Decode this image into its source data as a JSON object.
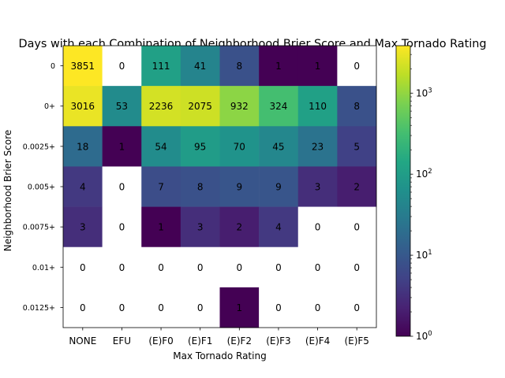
{
  "chart_data": {
    "type": "heatmap",
    "title": "Days with each Combination of Neighborhood Brier Score and Max Tornado Rating",
    "xlabel": "Max Tornado Rating",
    "ylabel": "Neighborhood Brier Score",
    "x_categories": [
      "NONE",
      "EFU",
      "(E)F0",
      "(E)F1",
      "(E)F2",
      "(E)F3",
      "(E)F4",
      "(E)F5"
    ],
    "y_categories": [
      "0",
      "0+",
      "0.0025+",
      "0.005+",
      "0.0075+",
      "0.01+",
      "0.0125+"
    ],
    "values": [
      [
        3851,
        0,
        111,
        41,
        8,
        1,
        1,
        0
      ],
      [
        3016,
        53,
        2236,
        2075,
        932,
        324,
        110,
        8
      ],
      [
        18,
        1,
        54,
        95,
        70,
        45,
        23,
        5
      ],
      [
        4,
        0,
        7,
        8,
        9,
        9,
        3,
        2
      ],
      [
        3,
        0,
        1,
        3,
        2,
        4,
        0,
        0
      ],
      [
        0,
        0,
        0,
        0,
        0,
        0,
        0,
        0
      ],
      [
        0,
        0,
        0,
        0,
        1,
        0,
        0,
        0
      ]
    ],
    "color_scale": "log",
    "colormap": "viridis",
    "zero_color": "#ffffff",
    "colorbar": {
      "range": [
        1,
        3851
      ],
      "ticks": [
        {
          "value": 1,
          "base": "10",
          "exp": "0"
        },
        {
          "value": 10,
          "base": "10",
          "exp": "1"
        },
        {
          "value": 100,
          "base": "10",
          "exp": "2"
        },
        {
          "value": 1000,
          "base": "10",
          "exp": "3"
        }
      ]
    }
  }
}
